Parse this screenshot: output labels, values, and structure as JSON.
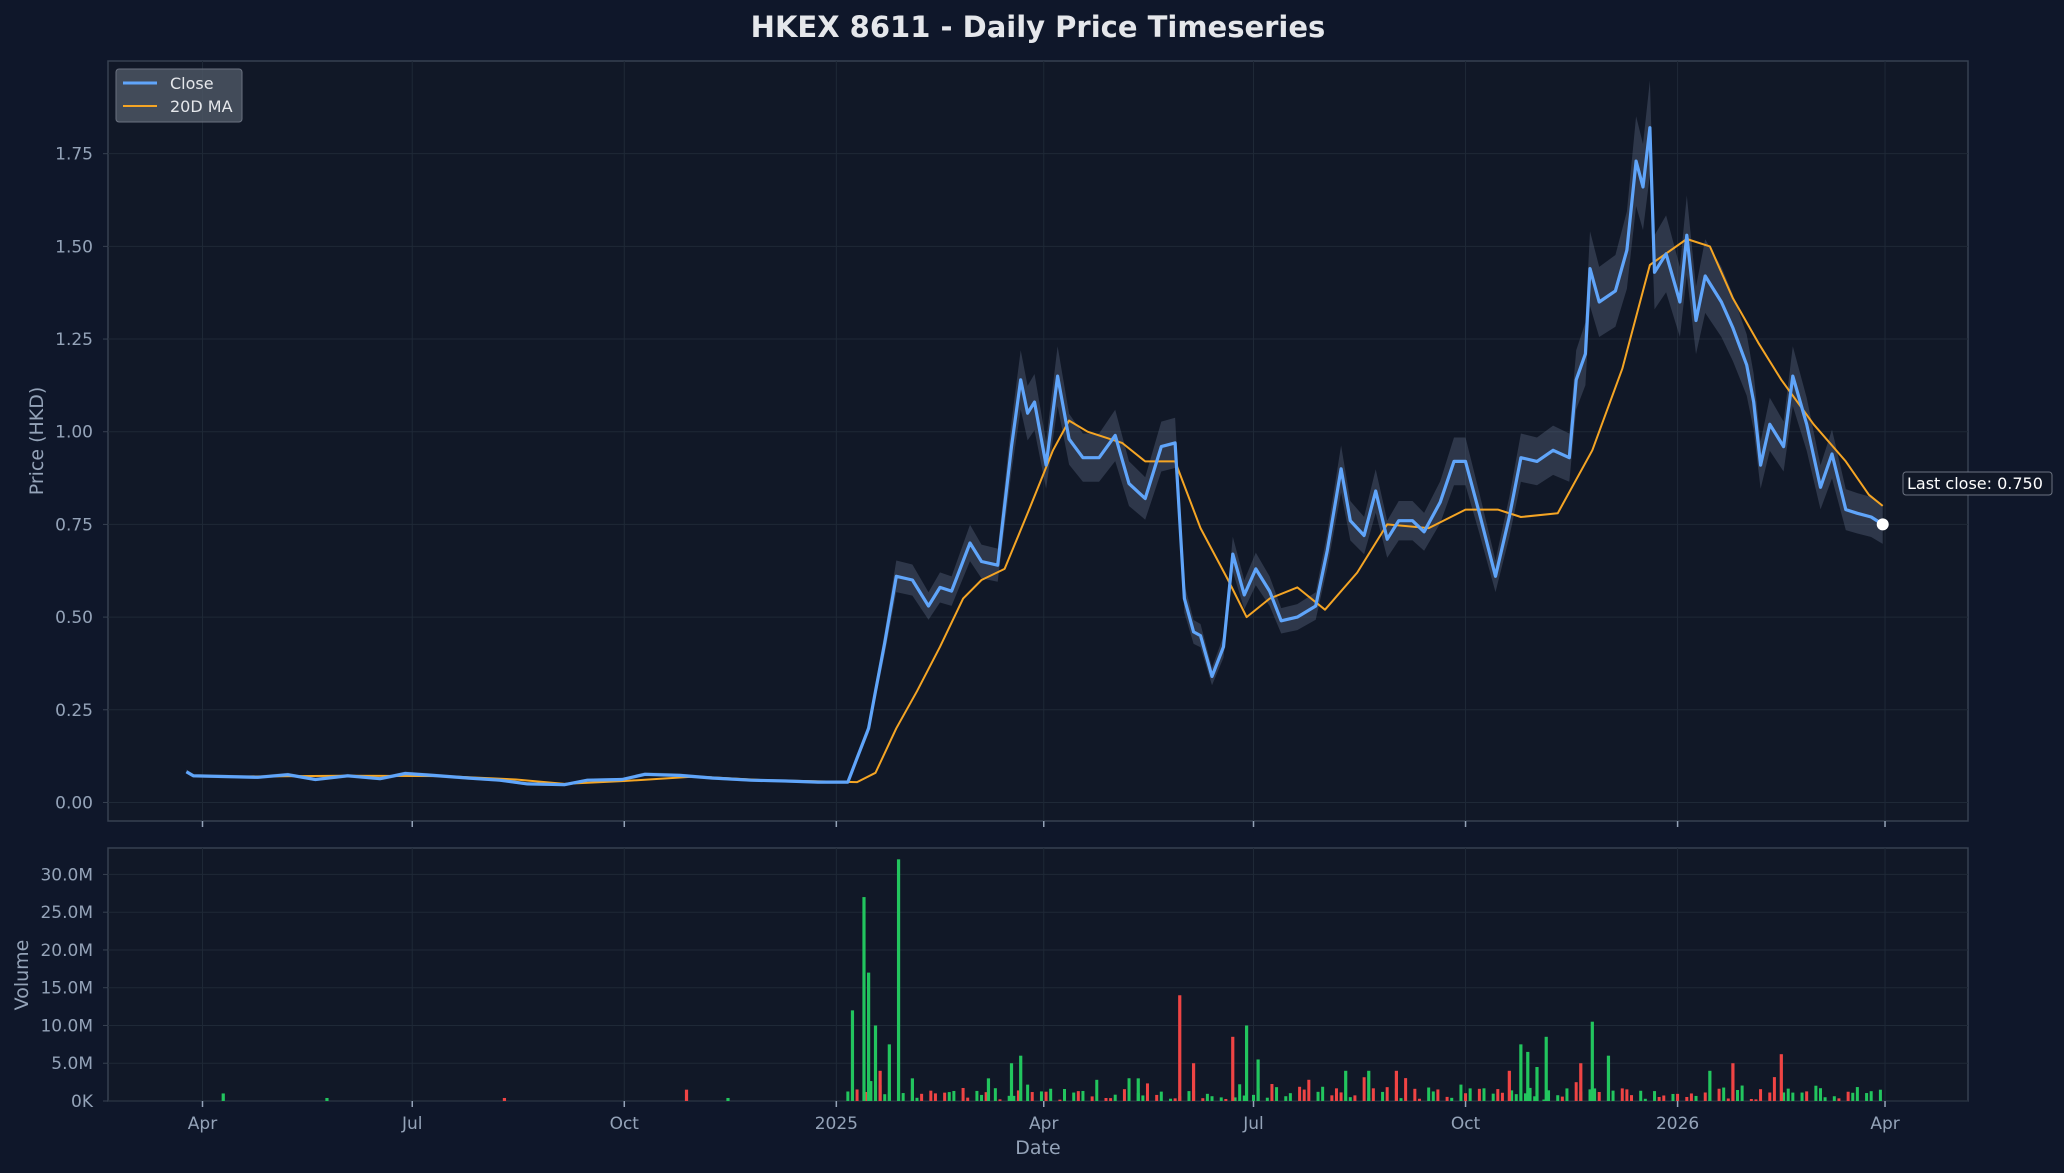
{
  "colors": {
    "background": "#0f172a",
    "panel": "#111827",
    "grid": "#1f2937",
    "frame": "#374151",
    "close": "#60a5fa",
    "ma": "#f5a524",
    "band": "#64748b",
    "vol_up": "#22c55e",
    "vol_down": "#ef4444"
  },
  "chart_data": {
    "type": "line",
    "title": "HKEX 8611 - Daily Price Timeseries",
    "xlabel": "Date",
    "ylabel": "Price (HKD)",
    "volume_ylabel": "Volume",
    "x_tick_labels": [
      "Apr",
      "Jul",
      "Oct",
      "2025",
      "Apr",
      "Jul",
      "Oct",
      "2026",
      "Apr"
    ],
    "x_tick_dates": [
      "2024-04-01",
      "2024-07-01",
      "2024-10-01",
      "2025-01-01",
      "2025-04-01",
      "2025-07-01",
      "2025-10-01",
      "2026-01-01",
      "2026-04-01"
    ],
    "xlim": [
      "2024-02-20",
      "2026-05-07"
    ],
    "ylim": [
      -0.05,
      2.0
    ],
    "y_ticks": [
      0.0,
      0.25,
      0.5,
      0.75,
      1.0,
      1.25,
      1.5,
      1.75
    ],
    "y_tick_labels": [
      "0.00",
      "0.25",
      "0.50",
      "0.75",
      "1.00",
      "1.25",
      "1.50",
      "1.75"
    ],
    "volume_ylim": [
      0,
      33500000
    ],
    "volume_ticks": [
      0,
      5000000,
      10000000,
      15000000,
      20000000,
      25000000,
      30000000
    ],
    "volume_tick_labels": [
      "0K",
      "5.0M",
      "10.0M",
      "15.0M",
      "20.0M",
      "25.0M",
      "30.0M"
    ],
    "legend": {
      "position": "top-left",
      "entries": [
        "Close",
        "20D MA"
      ]
    },
    "grid": true,
    "annotation": "Last close: 0.750",
    "last_close": 0.75,
    "series": [
      {
        "name": "Close",
        "points": [
          [
            "2024-03-25",
            0.083
          ],
          [
            "2024-03-28",
            0.072
          ],
          [
            "2024-04-10",
            0.07
          ],
          [
            "2024-04-25",
            0.068
          ],
          [
            "2024-05-08",
            0.075
          ],
          [
            "2024-05-20",
            0.062
          ],
          [
            "2024-06-03",
            0.072
          ],
          [
            "2024-06-17",
            0.064
          ],
          [
            "2024-06-28",
            0.078
          ],
          [
            "2024-07-10",
            0.073
          ],
          [
            "2024-07-25",
            0.066
          ],
          [
            "2024-08-08",
            0.06
          ],
          [
            "2024-08-20",
            0.05
          ],
          [
            "2024-09-05",
            0.048
          ],
          [
            "2024-09-15",
            0.06
          ],
          [
            "2024-09-30",
            0.062
          ],
          [
            "2024-10-10",
            0.076
          ],
          [
            "2024-10-25",
            0.073
          ],
          [
            "2024-11-08",
            0.066
          ],
          [
            "2024-11-25",
            0.06
          ],
          [
            "2024-12-10",
            0.058
          ],
          [
            "2024-12-24",
            0.055
          ],
          [
            "2025-01-06",
            0.055
          ],
          [
            "2025-01-10",
            0.12
          ],
          [
            "2025-01-15",
            0.2
          ],
          [
            "2025-01-18",
            0.3
          ],
          [
            "2025-01-22",
            0.43
          ],
          [
            "2025-01-27",
            0.61
          ],
          [
            "2025-02-03",
            0.6
          ],
          [
            "2025-02-10",
            0.53
          ],
          [
            "2025-02-15",
            0.58
          ],
          [
            "2025-02-20",
            0.57
          ],
          [
            "2025-02-28",
            0.7
          ],
          [
            "2025-03-05",
            0.65
          ],
          [
            "2025-03-12",
            0.64
          ],
          [
            "2025-03-18",
            0.96
          ],
          [
            "2025-03-22",
            1.14
          ],
          [
            "2025-03-25",
            1.05
          ],
          [
            "2025-03-28",
            1.08
          ],
          [
            "2025-04-02",
            0.91
          ],
          [
            "2025-04-07",
            1.15
          ],
          [
            "2025-04-12",
            0.98
          ],
          [
            "2025-04-18",
            0.93
          ],
          [
            "2025-04-25",
            0.93
          ],
          [
            "2025-05-02",
            0.99
          ],
          [
            "2025-05-08",
            0.86
          ],
          [
            "2025-05-15",
            0.82
          ],
          [
            "2025-05-22",
            0.96
          ],
          [
            "2025-05-28",
            0.97
          ],
          [
            "2025-06-01",
            0.55
          ],
          [
            "2025-06-05",
            0.46
          ],
          [
            "2025-06-08",
            0.45
          ],
          [
            "2025-06-13",
            0.34
          ],
          [
            "2025-06-18",
            0.42
          ],
          [
            "2025-06-22",
            0.67
          ],
          [
            "2025-06-27",
            0.56
          ],
          [
            "2025-07-02",
            0.63
          ],
          [
            "2025-07-08",
            0.57
          ],
          [
            "2025-07-13",
            0.49
          ],
          [
            "2025-07-20",
            0.5
          ],
          [
            "2025-07-28",
            0.53
          ],
          [
            "2025-08-02",
            0.68
          ],
          [
            "2025-08-08",
            0.9
          ],
          [
            "2025-08-12",
            0.76
          ],
          [
            "2025-08-18",
            0.72
          ],
          [
            "2025-08-23",
            0.84
          ],
          [
            "2025-08-28",
            0.71
          ],
          [
            "2025-09-02",
            0.76
          ],
          [
            "2025-09-08",
            0.76
          ],
          [
            "2025-09-13",
            0.73
          ],
          [
            "2025-09-20",
            0.81
          ],
          [
            "2025-09-26",
            0.92
          ],
          [
            "2025-10-01",
            0.92
          ],
          [
            "2025-10-07",
            0.78
          ],
          [
            "2025-10-14",
            0.61
          ],
          [
            "2025-10-20",
            0.77
          ],
          [
            "2025-10-25",
            0.93
          ],
          [
            "2025-11-01",
            0.92
          ],
          [
            "2025-11-08",
            0.95
          ],
          [
            "2025-11-15",
            0.93
          ],
          [
            "2025-11-18",
            1.14
          ],
          [
            "2025-11-22",
            1.21
          ],
          [
            "2025-11-24",
            1.44
          ],
          [
            "2025-11-28",
            1.35
          ],
          [
            "2025-12-05",
            1.38
          ],
          [
            "2025-12-10",
            1.49
          ],
          [
            "2025-12-14",
            1.73
          ],
          [
            "2025-12-17",
            1.66
          ],
          [
            "2025-12-20",
            1.82
          ],
          [
            "2025-12-22",
            1.43
          ],
          [
            "2025-12-27",
            1.48
          ],
          [
            "2026-01-02",
            1.35
          ],
          [
            "2026-01-05",
            1.53
          ],
          [
            "2026-01-09",
            1.3
          ],
          [
            "2026-01-13",
            1.42
          ],
          [
            "2026-01-20",
            1.35
          ],
          [
            "2026-01-25",
            1.28
          ],
          [
            "2026-01-31",
            1.18
          ],
          [
            "2026-02-03",
            1.08
          ],
          [
            "2026-02-06",
            0.91
          ],
          [
            "2026-02-10",
            1.02
          ],
          [
            "2026-02-16",
            0.96
          ],
          [
            "2026-02-20",
            1.15
          ],
          [
            "2026-02-26",
            1.02
          ],
          [
            "2026-03-04",
            0.85
          ],
          [
            "2026-03-09",
            0.94
          ],
          [
            "2026-03-15",
            0.79
          ],
          [
            "2026-03-20",
            0.78
          ],
          [
            "2026-03-26",
            0.77
          ],
          [
            "2026-03-31",
            0.75
          ]
        ]
      },
      {
        "name": "20D MA",
        "points": [
          [
            "2024-04-20",
            0.07
          ],
          [
            "2024-06-01",
            0.072
          ],
          [
            "2024-07-15",
            0.071
          ],
          [
            "2024-08-15",
            0.062
          ],
          [
            "2024-09-05",
            0.05
          ],
          [
            "2024-10-01",
            0.058
          ],
          [
            "2024-11-01",
            0.07
          ],
          [
            "2024-12-01",
            0.06
          ],
          [
            "2025-01-10",
            0.055
          ],
          [
            "2025-01-18",
            0.08
          ],
          [
            "2025-01-27",
            0.2
          ],
          [
            "2025-02-05",
            0.3
          ],
          [
            "2025-02-15",
            0.42
          ],
          [
            "2025-02-25",
            0.55
          ],
          [
            "2025-03-05",
            0.6
          ],
          [
            "2025-03-15",
            0.63
          ],
          [
            "2025-03-25",
            0.78
          ],
          [
            "2025-04-05",
            0.95
          ],
          [
            "2025-04-12",
            1.03
          ],
          [
            "2025-04-20",
            1.0
          ],
          [
            "2025-05-05",
            0.97
          ],
          [
            "2025-05-15",
            0.92
          ],
          [
            "2025-05-28",
            0.92
          ],
          [
            "2025-06-08",
            0.74
          ],
          [
            "2025-06-20",
            0.6
          ],
          [
            "2025-06-28",
            0.5
          ],
          [
            "2025-07-08",
            0.55
          ],
          [
            "2025-07-20",
            0.58
          ],
          [
            "2025-08-01",
            0.52
          ],
          [
            "2025-08-15",
            0.62
          ],
          [
            "2025-08-28",
            0.75
          ],
          [
            "2025-09-15",
            0.74
          ],
          [
            "2025-10-01",
            0.79
          ],
          [
            "2025-10-15",
            0.79
          ],
          [
            "2025-10-25",
            0.77
          ],
          [
            "2025-11-10",
            0.78
          ],
          [
            "2025-11-25",
            0.95
          ],
          [
            "2025-12-08",
            1.17
          ],
          [
            "2025-12-20",
            1.45
          ],
          [
            "2026-01-05",
            1.52
          ],
          [
            "2026-01-15",
            1.5
          ],
          [
            "2026-01-25",
            1.36
          ],
          [
            "2026-02-05",
            1.24
          ],
          [
            "2026-02-15",
            1.14
          ],
          [
            "2026-03-01",
            1.02
          ],
          [
            "2026-03-15",
            0.92
          ],
          [
            "2026-03-25",
            0.83
          ],
          [
            "2026-03-31",
            0.8
          ]
        ]
      }
    ],
    "volume_spikes": [
      [
        "2024-04-10",
        1000000,
        "up"
      ],
      [
        "2024-05-25",
        400000,
        "up"
      ],
      [
        "2024-08-10",
        400000,
        "down"
      ],
      [
        "2024-10-28",
        1500000,
        "down"
      ],
      [
        "2024-11-15",
        400000,
        "up"
      ],
      [
        "2025-01-08",
        12000000,
        "up"
      ],
      [
        "2025-01-13",
        27000000,
        "up"
      ],
      [
        "2025-01-15",
        17000000,
        "up"
      ],
      [
        "2025-01-18",
        10000000,
        "up"
      ],
      [
        "2025-01-20",
        4000000,
        "down"
      ],
      [
        "2025-01-24",
        7500000,
        "up"
      ],
      [
        "2025-01-28",
        32000000,
        "up"
      ],
      [
        "2025-02-03",
        3000000,
        "up"
      ],
      [
        "2025-03-08",
        3000000,
        "up"
      ],
      [
        "2025-03-18",
        5000000,
        "up"
      ],
      [
        "2025-03-22",
        6000000,
        "up"
      ],
      [
        "2025-05-12",
        3000000,
        "up"
      ],
      [
        "2025-05-30",
        14000000,
        "down"
      ],
      [
        "2025-06-05",
        5000000,
        "down"
      ],
      [
        "2025-06-22",
        8500000,
        "down"
      ],
      [
        "2025-06-28",
        10000000,
        "up"
      ],
      [
        "2025-07-03",
        5500000,
        "up"
      ],
      [
        "2025-08-10",
        4000000,
        "up"
      ],
      [
        "2025-08-20",
        4000000,
        "up"
      ],
      [
        "2025-09-01",
        4000000,
        "down"
      ],
      [
        "2025-10-20",
        4000000,
        "down"
      ],
      [
        "2025-10-25",
        7500000,
        "up"
      ],
      [
        "2025-10-28",
        6500000,
        "up"
      ],
      [
        "2025-11-01",
        4500000,
        "up"
      ],
      [
        "2025-11-05",
        8500000,
        "up"
      ],
      [
        "2025-11-20",
        5000000,
        "down"
      ],
      [
        "2025-11-25",
        10500000,
        "up"
      ],
      [
        "2025-12-02",
        6000000,
        "up"
      ],
      [
        "2026-01-15",
        4000000,
        "up"
      ],
      [
        "2026-01-25",
        5000000,
        "down"
      ],
      [
        "2026-02-15",
        6200000,
        "down"
      ]
    ]
  }
}
